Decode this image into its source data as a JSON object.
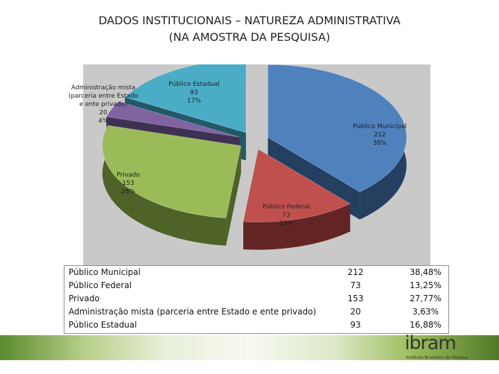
{
  "slide": {
    "title_line1": "DADOS INSTITUCIONAIS – NATUREZA ADMINISTRATIVA",
    "title_line2": "(NA AMOSTRA DA PESQUISA)"
  },
  "chart_data": {
    "type": "pie",
    "style": "3d-exploded",
    "title": "",
    "slices": [
      {
        "name": "Público Municipal",
        "label_lines": [
          "Público Municipal"
        ],
        "value": 212,
        "pct_label": "38%",
        "color": "#4f81bd",
        "side_color": "#243f60"
      },
      {
        "name": "Público Federal",
        "label_lines": [
          "Público Federal"
        ],
        "value": 73,
        "pct_label": "13%",
        "color": "#c0504d",
        "side_color": "#632523"
      },
      {
        "name": "Privado",
        "label_lines": [
          "Privado"
        ],
        "value": 153,
        "pct_label": "28%",
        "color": "#9bbb59",
        "side_color": "#4f6228"
      },
      {
        "name": "Administração mista (parceria entre Estado e ente privado)",
        "label_lines": [
          "Administração mista",
          "(parceria entre Estado",
          "e ente privado)"
        ],
        "value": 20,
        "pct_label": "4%",
        "color": "#8064a2",
        "side_color": "#3f3151"
      },
      {
        "name": "Público Estadual",
        "label_lines": [
          "Público Estadual"
        ],
        "value": 93,
        "pct_label": "17%",
        "color": "#4bacc6",
        "side_color": "#215968"
      }
    ]
  },
  "table": {
    "rows": [
      {
        "name": "Público Municipal",
        "count": "212",
        "pct": "38,48%"
      },
      {
        "name": "Público Federal",
        "count": "73",
        "pct": "13,25%"
      },
      {
        "name": "Privado",
        "count": "153",
        "pct": "27,77%"
      },
      {
        "name": "Administração mista (parceria entre Estado e ente privado)",
        "count": "20",
        "pct": "3,63%"
      },
      {
        "name": "Público Estadual",
        "count": "93",
        "pct": "16,88%"
      }
    ]
  },
  "logo": {
    "name": "ibram",
    "tagline": "Instituto Brasileiro de Museus"
  },
  "colors": {
    "band_colors": [
      "#5a8a2e",
      "#b8d08a",
      "#e8efd9",
      "#f7f9f2",
      "#dde9c8",
      "#9bbb59",
      "#4f7a28"
    ]
  }
}
